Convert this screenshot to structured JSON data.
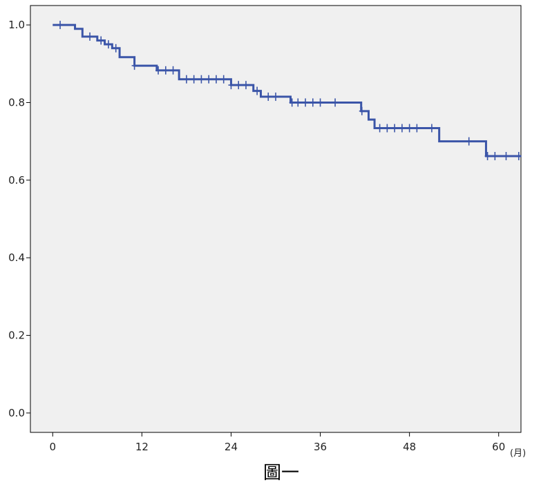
{
  "chart_data": {
    "type": "line",
    "subtype": "kaplan-meier-step",
    "caption": "圖一",
    "x_unit_label": "(月)",
    "xlabel": "",
    "ylabel": "",
    "xlim": [
      -3,
      63
    ],
    "ylim": [
      -0.05,
      1.05
    ],
    "x_ticks": [
      0,
      12,
      24,
      36,
      48,
      60
    ],
    "x_tick_labels": [
      "0",
      "12",
      "24",
      "36",
      "48",
      "60"
    ],
    "y_ticks": [
      0.0,
      0.2,
      0.4,
      0.6,
      0.8,
      1.0
    ],
    "y_tick_labels": [
      "0.0",
      "0.2",
      "0.4",
      "0.6",
      "0.8",
      "1.0"
    ],
    "grid": false,
    "legend": "none",
    "series": [
      {
        "steps": [
          {
            "x": 0,
            "y": 1.0
          },
          {
            "x": 3,
            "y": 0.99
          },
          {
            "x": 4,
            "y": 0.97
          },
          {
            "x": 6,
            "y": 0.96
          },
          {
            "x": 7,
            "y": 0.95
          },
          {
            "x": 8,
            "y": 0.94
          },
          {
            "x": 9,
            "y": 0.917
          },
          {
            "x": 11,
            "y": 0.895
          },
          {
            "x": 14,
            "y": 0.883
          },
          {
            "x": 17,
            "y": 0.86
          },
          {
            "x": 24,
            "y": 0.845
          },
          {
            "x": 27,
            "y": 0.83
          },
          {
            "x": 28,
            "y": 0.815
          },
          {
            "x": 32,
            "y": 0.8
          },
          {
            "x": 41.5,
            "y": 0.778
          },
          {
            "x": 42.5,
            "y": 0.756
          },
          {
            "x": 43.3,
            "y": 0.734
          },
          {
            "x": 52,
            "y": 0.7
          },
          {
            "x": 58.3,
            "y": 0.662
          }
        ],
        "end_x": 63,
        "censor_points": [
          {
            "x": 1,
            "y": 1.0
          },
          {
            "x": 5,
            "y": 0.97
          },
          {
            "x": 6.5,
            "y": 0.96
          },
          {
            "x": 7.5,
            "y": 0.95
          },
          {
            "x": 8.5,
            "y": 0.94
          },
          {
            "x": 11,
            "y": 0.895
          },
          {
            "x": 14.2,
            "y": 0.883
          },
          {
            "x": 15.2,
            "y": 0.883
          },
          {
            "x": 16.2,
            "y": 0.883
          },
          {
            "x": 18,
            "y": 0.86
          },
          {
            "x": 19,
            "y": 0.86
          },
          {
            "x": 20,
            "y": 0.86
          },
          {
            "x": 21,
            "y": 0.86
          },
          {
            "x": 22,
            "y": 0.86
          },
          {
            "x": 23,
            "y": 0.86
          },
          {
            "x": 24,
            "y": 0.845
          },
          {
            "x": 25,
            "y": 0.845
          },
          {
            "x": 26,
            "y": 0.845
          },
          {
            "x": 27.5,
            "y": 0.83
          },
          {
            "x": 29,
            "y": 0.815
          },
          {
            "x": 30,
            "y": 0.815
          },
          {
            "x": 32.2,
            "y": 0.8
          },
          {
            "x": 33,
            "y": 0.8
          },
          {
            "x": 34,
            "y": 0.8
          },
          {
            "x": 35,
            "y": 0.8
          },
          {
            "x": 36,
            "y": 0.8
          },
          {
            "x": 38,
            "y": 0.8
          },
          {
            "x": 41.6,
            "y": 0.778
          },
          {
            "x": 44,
            "y": 0.734
          },
          {
            "x": 45,
            "y": 0.734
          },
          {
            "x": 46,
            "y": 0.734
          },
          {
            "x": 47,
            "y": 0.734
          },
          {
            "x": 48,
            "y": 0.734
          },
          {
            "x": 49,
            "y": 0.734
          },
          {
            "x": 51,
            "y": 0.734
          },
          {
            "x": 56,
            "y": 0.7
          },
          {
            "x": 58.5,
            "y": 0.662
          },
          {
            "x": 59.5,
            "y": 0.662
          },
          {
            "x": 61,
            "y": 0.662
          },
          {
            "x": 62.7,
            "y": 0.662
          }
        ]
      }
    ],
    "colors": {
      "line": "#3b55a8",
      "plot_background": "#f0f0f0",
      "axis": "#000000"
    }
  }
}
